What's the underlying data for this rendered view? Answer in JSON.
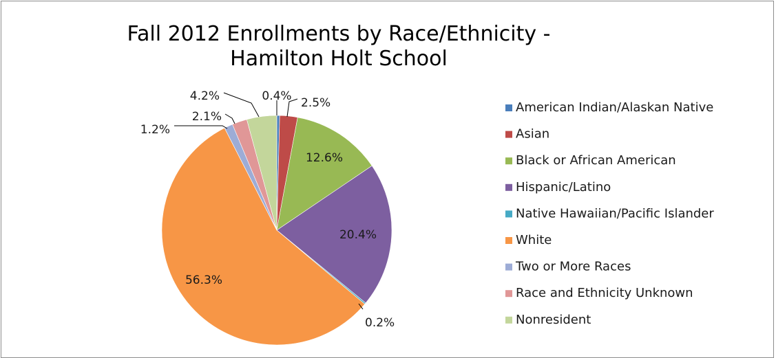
{
  "chart_data": {
    "type": "pie",
    "title": "Fall 2012 Enrollments by Race/Ethnicity - Hamilton Holt School",
    "title_lines": [
      "Fall 2012 Enrollments by Race/Ethnicity -",
      "Hamilton Holt School"
    ],
    "legend_position": "right",
    "slices": [
      {
        "name": "American Indian/Alaskan Native",
        "value": 0.4,
        "label": "0.4%",
        "color": "#4a7ebb"
      },
      {
        "name": "Asian",
        "value": 2.5,
        "label": "2.5%",
        "color": "#be4b48"
      },
      {
        "name": "Black or African American",
        "value": 12.6,
        "label": "12.6%",
        "color": "#98b954"
      },
      {
        "name": "Hispanic/Latino",
        "value": 20.4,
        "label": "20.4%",
        "color": "#7d5fa0"
      },
      {
        "name": "Native Hawaiian/Pacific Islander",
        "value": 0.2,
        "label": "0.2%",
        "color": "#46aac5"
      },
      {
        "name": "White",
        "value": 56.3,
        "label": "56.3%",
        "color": "#f79646"
      },
      {
        "name": "Two or More Races",
        "value": 1.2,
        "label": "1.2%",
        "color": "#9dacd6"
      },
      {
        "name": "Race and Ethnicity Unknown",
        "value": 2.1,
        "label": "2.1%",
        "color": "#e09797"
      },
      {
        "name": "Nonresident",
        "value": 4.2,
        "label": "4.2%",
        "color": "#c3d69b"
      }
    ]
  }
}
